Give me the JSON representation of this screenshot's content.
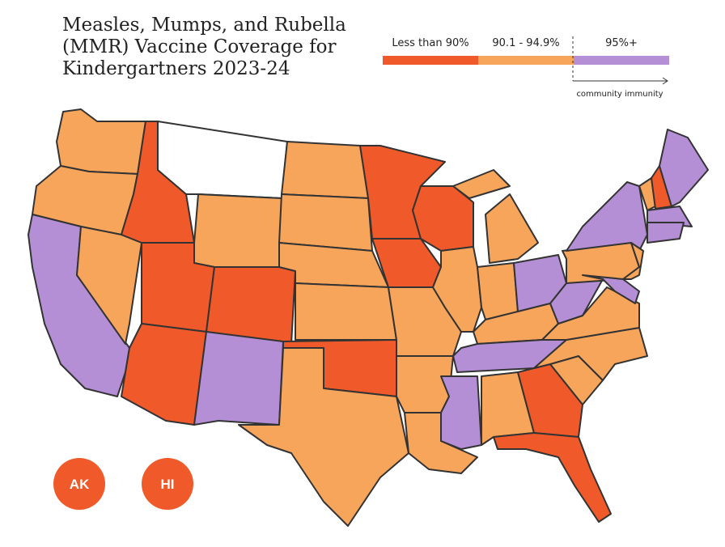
{
  "title_lines": [
    "Measles, Mumps, and Rubella",
    "(MMR) Vaccine Coverage for",
    "Kindergartners 2023-24"
  ],
  "legend": [
    {
      "label": "Less than 90%",
      "color": "#f05a2a"
    },
    {
      "label": "90.1 - 94.9%",
      "color": "#f8a55c"
    },
    {
      "label": "95%+",
      "color": "#b48fd6"
    }
  ],
  "legend_note": "community immunity",
  "insets": [
    {
      "label": "AK",
      "category": 0
    },
    {
      "label": "HI",
      "category": 0
    }
  ]
}
